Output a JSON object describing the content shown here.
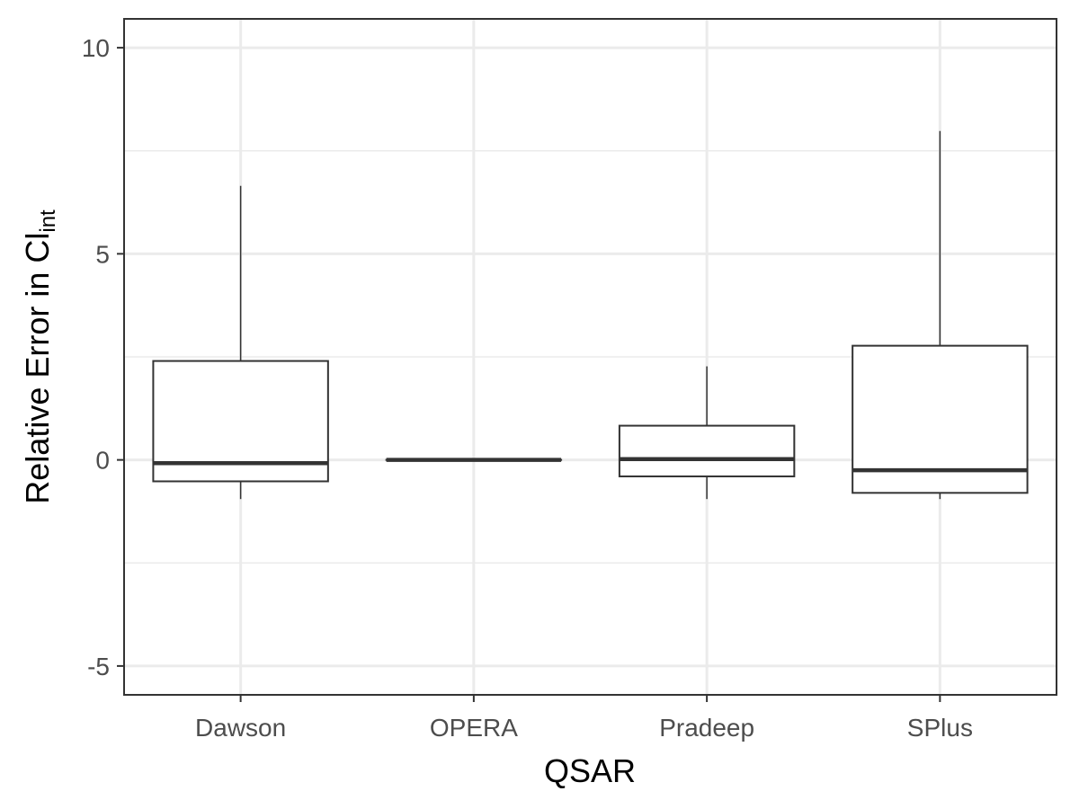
{
  "chart_data": {
    "type": "boxplot",
    "title": "",
    "xlabel": "QSAR",
    "ylabel_main": "Relative Error in Cl",
    "ylabel_sub": "int",
    "categories": [
      "Dawson",
      "OPERA",
      "Pradeep",
      "SPlus"
    ],
    "boxes": [
      {
        "category": "Dawson",
        "lower_whisker": -0.95,
        "q1": -0.52,
        "median": -0.08,
        "q3": 2.4,
        "upper_whisker": 6.65
      },
      {
        "category": "OPERA",
        "lower_whisker": 0.0,
        "q1": 0.0,
        "median": 0.0,
        "q3": 0.0,
        "upper_whisker": 0.0
      },
      {
        "category": "Pradeep",
        "lower_whisker": -0.95,
        "q1": -0.4,
        "median": 0.02,
        "q3": 0.83,
        "upper_whisker": 2.27
      },
      {
        "category": "SPlus",
        "lower_whisker": -0.95,
        "q1": -0.8,
        "median": -0.25,
        "q3": 2.77,
        "upper_whisker": 7.98
      }
    ],
    "ylim": [
      -5.7,
      10.7
    ],
    "yticks": [
      -5,
      0,
      5,
      10
    ],
    "ytick_labels": [
      "-5",
      "0",
      "5",
      "10"
    ],
    "y_minor_gridlines": [
      -2.5,
      2.5,
      7.5
    ],
    "grid": true,
    "legend": "none"
  }
}
